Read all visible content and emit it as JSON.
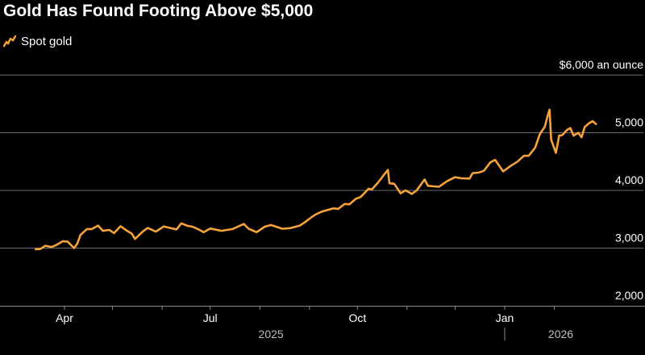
{
  "colors": {
    "line": "#F5A33A",
    "grid": "#6a6a6a",
    "axis": "#8a8a8a",
    "background": "#000000"
  },
  "chart_data": {
    "type": "line",
    "title": "Gold Has Found Footing Above $5,000",
    "ylabel_unit": "an ounce",
    "ylim": [
      2000,
      6000
    ],
    "xlim": [
      "2025-03-15",
      "2026-02-28"
    ],
    "grid": true,
    "legend_placement": "top-left",
    "y_ticks": [
      {
        "value": 6000,
        "label": "$6,000 an ounce"
      },
      {
        "value": 5000,
        "label": "5,000"
      },
      {
        "value": 4000,
        "label": "4,000"
      },
      {
        "value": 3000,
        "label": "3,000"
      },
      {
        "value": 2000,
        "label": "2,000"
      }
    ],
    "x_ticks": [
      {
        "date": "2025-04-01",
        "label": "Apr"
      },
      {
        "date": "2025-07-01",
        "label": "Jul"
      },
      {
        "date": "2025-10-01",
        "label": "Oct"
      },
      {
        "date": "2026-01-01",
        "label": "Jan"
      }
    ],
    "year_labels": [
      {
        "date": "2025-08-08",
        "label": "2025"
      },
      {
        "date": "2026-02-05",
        "label": "2026"
      }
    ],
    "year_divider": "2026-01-01",
    "series": [
      {
        "name": "Spot gold",
        "points": [
          [
            "2025-03-14",
            2980
          ],
          [
            "2025-03-17",
            2985
          ],
          [
            "2025-03-20",
            3040
          ],
          [
            "2025-03-24",
            3020
          ],
          [
            "2025-03-27",
            3055
          ],
          [
            "2025-03-31",
            3120
          ],
          [
            "2025-04-03",
            3110
          ],
          [
            "2025-04-07",
            3000
          ],
          [
            "2025-04-09",
            3080
          ],
          [
            "2025-04-11",
            3230
          ],
          [
            "2025-04-15",
            3330
          ],
          [
            "2025-04-18",
            3330
          ],
          [
            "2025-04-22",
            3390
          ],
          [
            "2025-04-25",
            3300
          ],
          [
            "2025-04-29",
            3315
          ],
          [
            "2025-05-02",
            3260
          ],
          [
            "2025-05-06",
            3380
          ],
          [
            "2025-05-09",
            3320
          ],
          [
            "2025-05-13",
            3250
          ],
          [
            "2025-05-15",
            3160
          ],
          [
            "2025-05-20",
            3290
          ],
          [
            "2025-05-23",
            3350
          ],
          [
            "2025-05-28",
            3285
          ],
          [
            "2025-06-02",
            3375
          ],
          [
            "2025-06-05",
            3355
          ],
          [
            "2025-06-10",
            3325
          ],
          [
            "2025-06-13",
            3430
          ],
          [
            "2025-06-17",
            3385
          ],
          [
            "2025-06-20",
            3370
          ],
          [
            "2025-06-24",
            3320
          ],
          [
            "2025-06-27",
            3275
          ],
          [
            "2025-07-01",
            3340
          ],
          [
            "2025-07-08",
            3300
          ],
          [
            "2025-07-15",
            3330
          ],
          [
            "2025-07-22",
            3420
          ],
          [
            "2025-07-25",
            3335
          ],
          [
            "2025-07-30",
            3275
          ],
          [
            "2025-08-04",
            3370
          ],
          [
            "2025-08-08",
            3400
          ],
          [
            "2025-08-15",
            3335
          ],
          [
            "2025-08-20",
            3345
          ],
          [
            "2025-08-26",
            3390
          ],
          [
            "2025-08-29",
            3445
          ],
          [
            "2025-09-02",
            3530
          ],
          [
            "2025-09-05",
            3585
          ],
          [
            "2025-09-09",
            3635
          ],
          [
            "2025-09-16",
            3690
          ],
          [
            "2025-09-19",
            3680
          ],
          [
            "2025-09-23",
            3765
          ],
          [
            "2025-09-26",
            3760
          ],
          [
            "2025-09-30",
            3855
          ],
          [
            "2025-10-03",
            3885
          ],
          [
            "2025-10-08",
            4030
          ],
          [
            "2025-10-10",
            4015
          ],
          [
            "2025-10-14",
            4140
          ],
          [
            "2025-10-17",
            4250
          ],
          [
            "2025-10-20",
            4355
          ],
          [
            "2025-10-21",
            4125
          ],
          [
            "2025-10-24",
            4115
          ],
          [
            "2025-10-28",
            3950
          ],
          [
            "2025-10-31",
            4000
          ],
          [
            "2025-11-04",
            3940
          ],
          [
            "2025-11-07",
            4000
          ],
          [
            "2025-11-12",
            4190
          ],
          [
            "2025-11-14",
            4080
          ],
          [
            "2025-11-18",
            4070
          ],
          [
            "2025-11-21",
            4065
          ],
          [
            "2025-11-26",
            4160
          ],
          [
            "2025-12-01",
            4230
          ],
          [
            "2025-12-05",
            4210
          ],
          [
            "2025-12-10",
            4205
          ],
          [
            "2025-12-12",
            4300
          ],
          [
            "2025-12-16",
            4310
          ],
          [
            "2025-12-19",
            4340
          ],
          [
            "2025-12-23",
            4485
          ],
          [
            "2025-12-26",
            4530
          ],
          [
            "2025-12-31",
            4330
          ],
          [
            "2026-01-05",
            4430
          ],
          [
            "2026-01-09",
            4500
          ],
          [
            "2026-01-13",
            4600
          ],
          [
            "2026-01-16",
            4600
          ],
          [
            "2026-01-20",
            4740
          ],
          [
            "2026-01-23",
            4980
          ],
          [
            "2026-01-26",
            5100
          ],
          [
            "2026-01-28",
            5310
          ],
          [
            "2026-01-29",
            5400
          ],
          [
            "2026-01-30",
            4880
          ],
          [
            "2026-02-02",
            4650
          ],
          [
            "2026-02-04",
            4950
          ],
          [
            "2026-02-06",
            4960
          ],
          [
            "2026-02-09",
            5050
          ],
          [
            "2026-02-11",
            5080
          ],
          [
            "2026-02-13",
            4950
          ],
          [
            "2026-02-16",
            5000
          ],
          [
            "2026-02-18",
            4920
          ],
          [
            "2026-02-20",
            5100
          ],
          [
            "2026-02-23",
            5170
          ],
          [
            "2026-02-25",
            5200
          ],
          [
            "2026-02-27",
            5150
          ]
        ]
      }
    ]
  }
}
